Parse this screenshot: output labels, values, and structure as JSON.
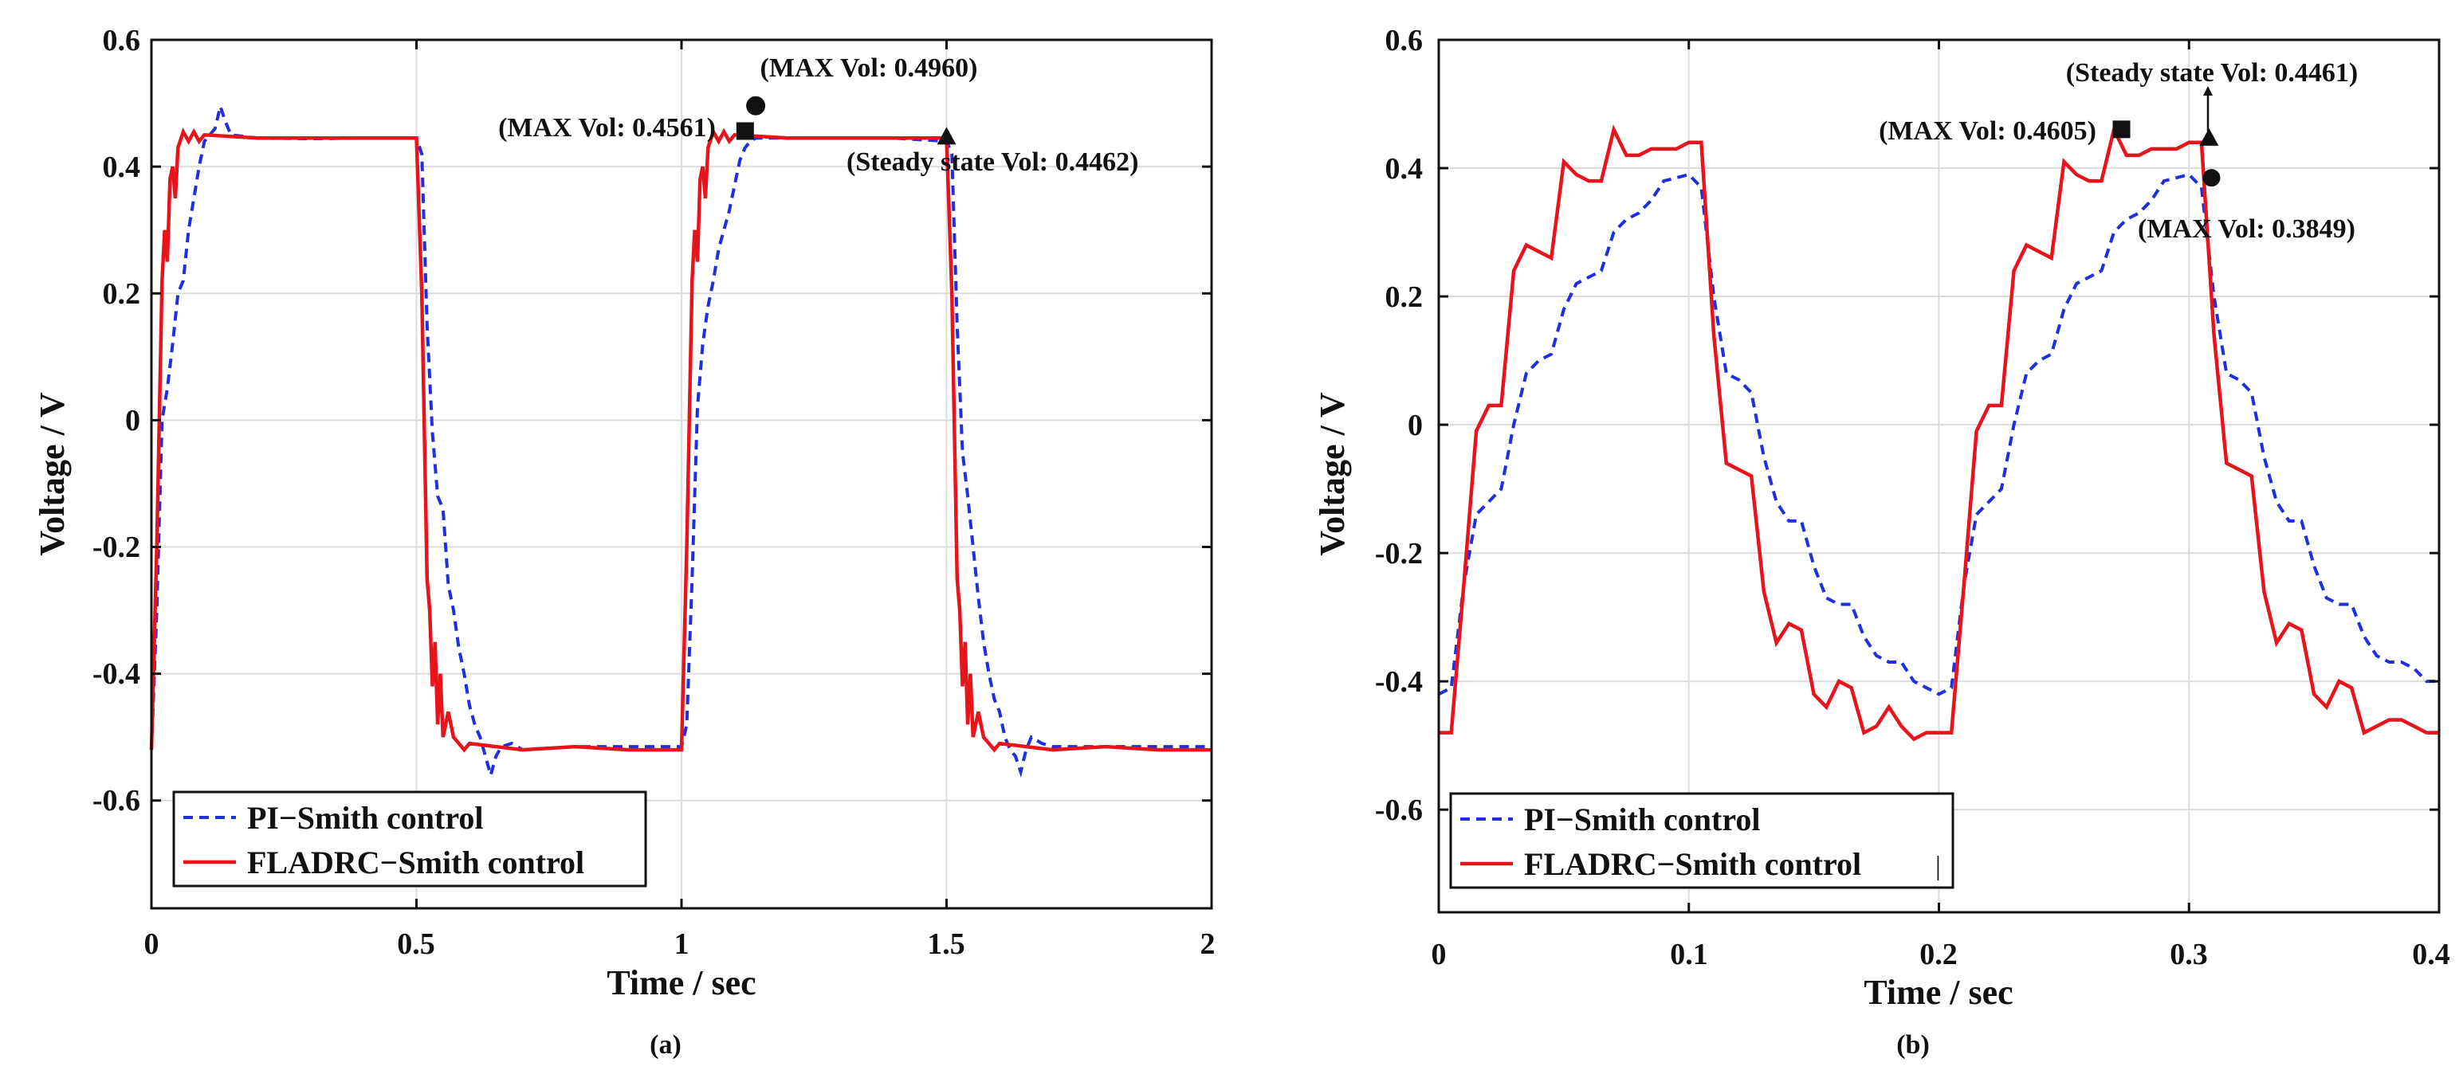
{
  "colors": {
    "pi": "#1f2fe0",
    "fladrc": "#e8141c",
    "grid": "#dcdcdc",
    "axis": "#111111"
  },
  "chart_data": [
    {
      "type": "line",
      "caption": "(a)",
      "xlabel": "Time / sec",
      "ylabel": "Voltage / V",
      "xlim": [
        0,
        2
      ],
      "ylim": [
        -0.77,
        0.6
      ],
      "xticks": [
        0,
        0.5,
        1,
        1.5,
        2
      ],
      "xtick_labels": [
        "0",
        "0.5",
        "1",
        "1.5",
        "2"
      ],
      "yticks": [
        0.6,
        0.4,
        0.2,
        0,
        -0.2,
        -0.4,
        -0.6
      ],
      "ytick_labels": [
        "0.6",
        "0.4",
        "0.2",
        "0",
        "-0.2",
        "-0.4",
        "-0.6"
      ],
      "grid": true,
      "legend": {
        "position": "bottom-left",
        "entries": [
          "PI−Smith control",
          "FLADRC−Smith control"
        ]
      },
      "series": [
        {
          "name": "PI−Smith control",
          "style": "dashed",
          "x": [
            0,
            0.01,
            0.02,
            0.03,
            0.04,
            0.05,
            0.06,
            0.07,
            0.08,
            0.09,
            0.1,
            0.11,
            0.12,
            0.13,
            0.14,
            0.15,
            0.2,
            0.3,
            0.4,
            0.5,
            0.51,
            0.52,
            0.53,
            0.54,
            0.55,
            0.56,
            0.57,
            0.58,
            0.59,
            0.6,
            0.61,
            0.62,
            0.63,
            0.64,
            0.65,
            0.66,
            0.68,
            0.7,
            0.8,
            0.9,
            1.0,
            1.01,
            1.02,
            1.03,
            1.04,
            1.05,
            1.06,
            1.07,
            1.08,
            1.09,
            1.1,
            1.11,
            1.12,
            1.13,
            1.14,
            1.15,
            1.16,
            1.2,
            1.3,
            1.4,
            1.5,
            1.51,
            1.52,
            1.53,
            1.54,
            1.55,
            1.56,
            1.57,
            1.58,
            1.59,
            1.6,
            1.61,
            1.62,
            1.63,
            1.64,
            1.65,
            1.66,
            1.68,
            1.7,
            1.8,
            1.9,
            2.0
          ],
          "y": [
            -0.52,
            -0.3,
            0.0,
            0.05,
            0.12,
            0.2,
            0.22,
            0.3,
            0.35,
            0.4,
            0.44,
            0.45,
            0.46,
            0.495,
            0.47,
            0.45,
            0.445,
            0.444,
            0.445,
            0.445,
            0.42,
            0.15,
            -0.02,
            -0.12,
            -0.14,
            -0.26,
            -0.3,
            -0.36,
            -0.4,
            -0.45,
            -0.48,
            -0.5,
            -0.53,
            -0.56,
            -0.53,
            -0.515,
            -0.51,
            -0.52,
            -0.515,
            -0.515,
            -0.515,
            -0.48,
            -0.25,
            0.02,
            0.12,
            0.18,
            0.22,
            0.27,
            0.3,
            0.33,
            0.37,
            0.41,
            0.43,
            0.44,
            0.445,
            0.445,
            0.445,
            0.445,
            0.445,
            0.445,
            0.44,
            0.42,
            0.15,
            -0.05,
            -0.12,
            -0.2,
            -0.28,
            -0.35,
            -0.4,
            -0.44,
            -0.46,
            -0.5,
            -0.52,
            -0.53,
            -0.555,
            -0.52,
            -0.5,
            -0.51,
            -0.515,
            -0.515,
            -0.515,
            -0.515
          ]
        },
        {
          "name": "FLADRC−Smith control",
          "style": "solid",
          "x": [
            0,
            0.01,
            0.02,
            0.025,
            0.03,
            0.035,
            0.04,
            0.045,
            0.05,
            0.06,
            0.07,
            0.08,
            0.09,
            0.1,
            0.2,
            0.3,
            0.4,
            0.5,
            0.51,
            0.52,
            0.525,
            0.53,
            0.535,
            0.54,
            0.545,
            0.55,
            0.56,
            0.57,
            0.58,
            0.59,
            0.6,
            0.7,
            0.8,
            0.9,
            1.0,
            1.01,
            1.02,
            1.025,
            1.03,
            1.035,
            1.04,
            1.045,
            1.05,
            1.06,
            1.07,
            1.08,
            1.09,
            1.1,
            1.2,
            1.3,
            1.4,
            1.5,
            1.51,
            1.52,
            1.525,
            1.53,
            1.535,
            1.54,
            1.545,
            1.55,
            1.56,
            1.57,
            1.58,
            1.59,
            1.6,
            1.7,
            1.8,
            1.9,
            2.0
          ],
          "y": [
            -0.52,
            -0.2,
            0.22,
            0.3,
            0.25,
            0.38,
            0.4,
            0.35,
            0.43,
            0.455,
            0.44,
            0.455,
            0.44,
            0.45,
            0.445,
            0.445,
            0.445,
            0.445,
            0.2,
            -0.25,
            -0.3,
            -0.42,
            -0.35,
            -0.48,
            -0.4,
            -0.5,
            -0.46,
            -0.5,
            -0.51,
            -0.52,
            -0.51,
            -0.52,
            -0.515,
            -0.52,
            -0.52,
            -0.2,
            0.22,
            0.3,
            0.25,
            0.38,
            0.4,
            0.35,
            0.43,
            0.455,
            0.44,
            0.455,
            0.44,
            0.45,
            0.445,
            0.445,
            0.445,
            0.445,
            0.2,
            -0.25,
            -0.3,
            -0.42,
            -0.35,
            -0.48,
            -0.4,
            -0.5,
            -0.46,
            -0.5,
            -0.51,
            -0.52,
            -0.51,
            -0.52,
            -0.515,
            -0.52,
            -0.52
          ]
        }
      ],
      "annotations": [
        {
          "text": "(MAX Vol: 0.4960)",
          "x": 1.14,
          "y": 0.496,
          "marker": "circle"
        },
        {
          "text": "(MAX Vol: 0.4561)",
          "x": 1.12,
          "y": 0.4561,
          "marker": "square"
        },
        {
          "text": "(Steady state Vol: 0.4462)",
          "x": 1.5,
          "y": 0.4462,
          "marker": "triangle"
        }
      ]
    },
    {
      "type": "line",
      "caption": "(b)",
      "xlabel": "Time / sec",
      "ylabel": "Voltage / V",
      "xlim": [
        0,
        0.4
      ],
      "ylim": [
        -0.76,
        0.6
      ],
      "xticks": [
        0,
        0.1,
        0.2,
        0.3,
        0.4
      ],
      "xtick_labels": [
        "0",
        "0.1",
        "0.2",
        "0.3",
        "0.4"
      ],
      "yticks": [
        0.6,
        0.4,
        0.2,
        0,
        -0.2,
        -0.4,
        -0.6
      ],
      "ytick_labels": [
        "0.6",
        "0.4",
        "0.2",
        "0",
        "-0.2",
        "-0.4",
        "-0.6"
      ],
      "grid": true,
      "legend": {
        "position": "bottom-left",
        "entries": [
          "PI−Smith control",
          "FLADRC−Smith control"
        ]
      },
      "series": [
        {
          "name": "PI−Smith control",
          "style": "dashed",
          "x": [
            0,
            0.005,
            0.01,
            0.015,
            0.02,
            0.025,
            0.03,
            0.035,
            0.04,
            0.045,
            0.05,
            0.055,
            0.06,
            0.065,
            0.07,
            0.075,
            0.08,
            0.085,
            0.09,
            0.095,
            0.1,
            0.105,
            0.11,
            0.115,
            0.12,
            0.125,
            0.13,
            0.135,
            0.14,
            0.145,
            0.15,
            0.155,
            0.16,
            0.165,
            0.17,
            0.175,
            0.18,
            0.185,
            0.19,
            0.195,
            0.2,
            0.205,
            0.21,
            0.215,
            0.22,
            0.225,
            0.23,
            0.235,
            0.24,
            0.245,
            0.25,
            0.255,
            0.26,
            0.265,
            0.27,
            0.275,
            0.28,
            0.285,
            0.29,
            0.295,
            0.3,
            0.305,
            0.31,
            0.315,
            0.32,
            0.325,
            0.33,
            0.335,
            0.34,
            0.345,
            0.35,
            0.355,
            0.36,
            0.365,
            0.37,
            0.375,
            0.38,
            0.385,
            0.39,
            0.395,
            0.4
          ],
          "y": [
            -0.42,
            -0.41,
            -0.25,
            -0.14,
            -0.12,
            -0.1,
            0.0,
            0.08,
            0.1,
            0.11,
            0.18,
            0.22,
            0.23,
            0.24,
            0.3,
            0.32,
            0.33,
            0.35,
            0.38,
            0.385,
            0.39,
            0.37,
            0.2,
            0.08,
            0.07,
            0.05,
            -0.05,
            -0.12,
            -0.15,
            -0.15,
            -0.22,
            -0.27,
            -0.28,
            -0.28,
            -0.33,
            -0.36,
            -0.37,
            -0.37,
            -0.4,
            -0.41,
            -0.42,
            -0.41,
            -0.25,
            -0.14,
            -0.12,
            -0.1,
            0.0,
            0.08,
            0.1,
            0.11,
            0.18,
            0.22,
            0.23,
            0.24,
            0.3,
            0.32,
            0.33,
            0.35,
            0.38,
            0.385,
            0.39,
            0.37,
            0.2,
            0.08,
            0.07,
            0.05,
            -0.05,
            -0.12,
            -0.15,
            -0.15,
            -0.22,
            -0.27,
            -0.28,
            -0.28,
            -0.33,
            -0.36,
            -0.37,
            -0.37,
            -0.38,
            -0.4,
            -0.4
          ]
        },
        {
          "name": "FLADRC−Smith control",
          "style": "solid",
          "x": [
            0,
            0.005,
            0.01,
            0.015,
            0.02,
            0.025,
            0.03,
            0.035,
            0.04,
            0.045,
            0.05,
            0.055,
            0.06,
            0.065,
            0.07,
            0.075,
            0.08,
            0.085,
            0.09,
            0.095,
            0.1,
            0.105,
            0.11,
            0.115,
            0.12,
            0.125,
            0.13,
            0.135,
            0.14,
            0.145,
            0.15,
            0.155,
            0.16,
            0.165,
            0.17,
            0.175,
            0.18,
            0.185,
            0.19,
            0.195,
            0.2,
            0.205,
            0.21,
            0.215,
            0.22,
            0.225,
            0.23,
            0.235,
            0.24,
            0.245,
            0.25,
            0.255,
            0.26,
            0.265,
            0.27,
            0.275,
            0.28,
            0.285,
            0.29,
            0.295,
            0.3,
            0.305,
            0.31,
            0.315,
            0.32,
            0.325,
            0.33,
            0.335,
            0.34,
            0.345,
            0.35,
            0.355,
            0.36,
            0.365,
            0.37,
            0.375,
            0.38,
            0.385,
            0.39,
            0.395,
            0.4
          ],
          "y": [
            -0.48,
            -0.48,
            -0.25,
            -0.01,
            0.03,
            0.03,
            0.24,
            0.28,
            0.27,
            0.26,
            0.41,
            0.39,
            0.38,
            0.38,
            0.46,
            0.42,
            0.42,
            0.43,
            0.43,
            0.43,
            0.44,
            0.44,
            0.14,
            -0.06,
            -0.07,
            -0.08,
            -0.26,
            -0.34,
            -0.31,
            -0.32,
            -0.42,
            -0.44,
            -0.4,
            -0.41,
            -0.48,
            -0.47,
            -0.44,
            -0.47,
            -0.49,
            -0.48,
            -0.48,
            -0.48,
            -0.25,
            -0.01,
            0.03,
            0.03,
            0.24,
            0.28,
            0.27,
            0.26,
            0.41,
            0.39,
            0.38,
            0.38,
            0.46,
            0.42,
            0.42,
            0.43,
            0.43,
            0.43,
            0.44,
            0.44,
            0.14,
            -0.06,
            -0.07,
            -0.08,
            -0.26,
            -0.34,
            -0.31,
            -0.32,
            -0.42,
            -0.44,
            -0.4,
            -0.41,
            -0.48,
            -0.47,
            -0.46,
            -0.46,
            -0.47,
            -0.48,
            -0.48
          ]
        }
      ],
      "annotations": [
        {
          "text": "(Steady state Vol: 0.4461)",
          "x": 0.308,
          "y": 0.4461,
          "marker": "triangle"
        },
        {
          "text": "(MAX Vol: 0.4605)",
          "x": 0.273,
          "y": 0.4605,
          "marker": "square"
        },
        {
          "text": "(MAX Vol: 0.3849)",
          "x": 0.309,
          "y": 0.3849,
          "marker": "circle"
        }
      ],
      "legend_extra_mark": "|"
    }
  ]
}
